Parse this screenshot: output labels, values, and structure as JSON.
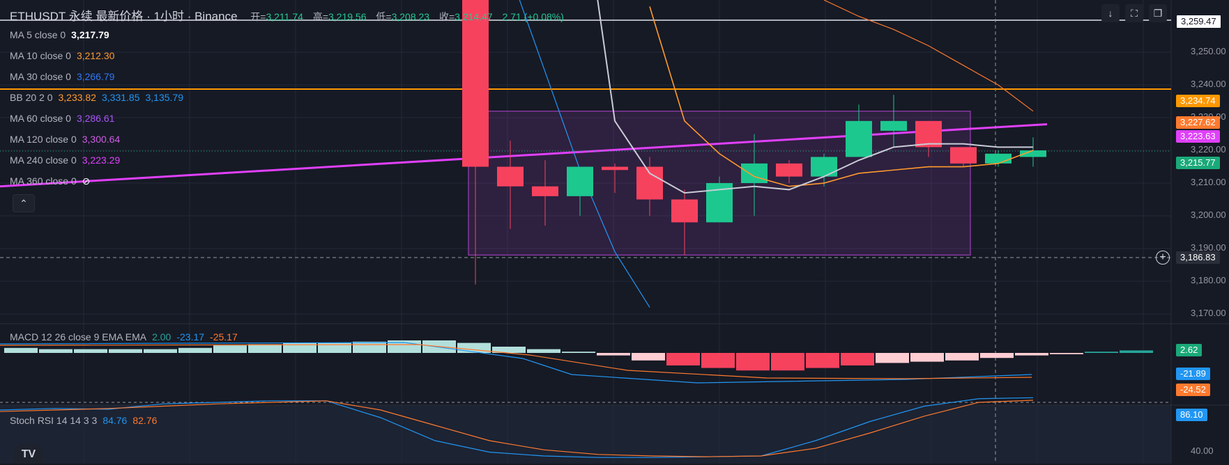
{
  "header": {
    "symbol_line": "ETHUSDT 永续 最新价格 · 1小时 · Binance",
    "open_key": "开=",
    "open": "3,211.74",
    "high_key": "高=",
    "high": "3,219.56",
    "low_key": "低=",
    "low": "3,208.23",
    "close_key": "收=",
    "close": "3,214.47",
    "change": "2.71 (+0.08%)"
  },
  "window_buttons": {
    "down": "↓",
    "fullscreen": "⛶",
    "restore": "❐"
  },
  "legend": [
    {
      "name": "MA 5 close 0",
      "value": "3,217.79",
      "color": "#ffffff"
    },
    {
      "name": "MA 10 close 0",
      "value": "3,212.30",
      "color": "#ff9a2e"
    },
    {
      "name": "MA 30 close 0",
      "value": "3,266.79",
      "color": "#3179f5"
    },
    {
      "name": "MA 60 close 0",
      "value": "3,286.61",
      "color": "#a855f7"
    },
    {
      "name": "MA 120 close 0",
      "value": "3,300.64",
      "color": "#d05ce3"
    },
    {
      "name": "MA 240 close 0",
      "value": "3,223.29",
      "color": "#e040fb"
    },
    {
      "name": "MA 360 close 0",
      "value": "⊘",
      "color": "#ffffff"
    }
  ],
  "bb_legend": {
    "name": "BB 20 2 0",
    "v1": "3,233.82",
    "v2": "3,331.85",
    "v3": "3,135.79",
    "c1": "#ff9a2e",
    "c2": "#2196f3",
    "c3": "#2196f3"
  },
  "collapse_icon": "⌃",
  "macd_legend": {
    "name": "MACD 12 26 close 9 EMA EMA",
    "hist": "2.00",
    "macd": "-23.17",
    "signal": "-25.17",
    "c_hist": "#26a69a",
    "c_macd": "#2196f3",
    "c_signal": "#ff7a2e"
  },
  "rsi_legend": {
    "name": "Stoch RSI 14 14 3 3",
    "k": "84.76",
    "d": "82.76",
    "c_k": "#2196f3",
    "c_d": "#ff7a2e"
  },
  "logo": "TV",
  "price_axis": {
    "ticks": [
      "3,250.00",
      "3,240.00",
      "3,230.00",
      "3,220.00",
      "3,210.00",
      "3,200.00",
      "3,190.00",
      "3,180.00",
      "3,170.00"
    ],
    "rsi_tick": "40.00"
  },
  "badges": {
    "top": "3,259.47",
    "bb_upper": "3,234.74",
    "ma10": "3,227.62",
    "ma240": "3,223.63",
    "last": "3,215.77",
    "crosshair": "3,186.83",
    "macd_hist": "2.62",
    "macd": "-21.89",
    "signal": "-24.52",
    "rsi": "86.10"
  },
  "colors": {
    "up": "#1dc88f",
    "down": "#f7425e",
    "bg": "#161a25",
    "grid": "#242836",
    "box": "#9c3fb8",
    "hline": "#ff9800"
  },
  "chart_data": {
    "type": "candlestick",
    "price_range": [
      3163,
      3262
    ],
    "candles": [
      {
        "o": 3309,
        "h": 3320,
        "l": 3175,
        "c": 3211
      },
      {
        "o": 3211,
        "h": 3219,
        "l": 3192,
        "c": 3205
      },
      {
        "o": 3205,
        "h": 3213,
        "l": 3193,
        "c": 3202
      },
      {
        "o": 3202,
        "h": 3211,
        "l": 3196,
        "c": 3211
      },
      {
        "o": 3211,
        "h": 3212,
        "l": 3203,
        "c": 3210
      },
      {
        "o": 3211,
        "h": 3214,
        "l": 3196,
        "c": 3201
      },
      {
        "o": 3201,
        "h": 3204,
        "l": 3184,
        "c": 3194
      },
      {
        "o": 3194,
        "h": 3208,
        "l": 3194,
        "c": 3206
      },
      {
        "o": 3206,
        "h": 3221,
        "l": 3196,
        "c": 3212
      },
      {
        "o": 3212,
        "h": 3213,
        "l": 3206,
        "c": 3208
      },
      {
        "o": 3208,
        "h": 3215,
        "l": 3205,
        "c": 3214
      },
      {
        "o": 3214,
        "h": 3230,
        "l": 3214,
        "c": 3225
      },
      {
        "o": 3222,
        "h": 3233,
        "l": 3217,
        "c": 3225
      },
      {
        "o": 3225,
        "h": 3225,
        "l": 3214,
        "c": 3217
      },
      {
        "o": 3217,
        "h": 3217,
        "l": 3211,
        "c": 3212
      },
      {
        "o": 3212,
        "h": 3216,
        "l": 3211,
        "c": 3215
      },
      {
        "o": 3214,
        "h": 3220,
        "l": 3211,
        "c": 3216
      }
    ],
    "ma5": [
      null,
      null,
      null,
      3300,
      3225,
      3209,
      3203,
      3204,
      3205,
      3204,
      3208,
      3213,
      3217,
      3218,
      3218,
      3217,
      3217
    ],
    "ma10": [
      null,
      null,
      null,
      null,
      null,
      3260,
      3225,
      3215,
      3208,
      3205,
      3206,
      3209,
      3210,
      3211,
      3211,
      3212,
      3216
    ],
    "ma30": [
      null,
      3270,
      3240,
      3210,
      3185,
      3168
    ],
    "ma30_tail": [
      3262,
      3259,
      3258
    ],
    "ma_upper": [
      3262,
      3257,
      3253,
      3248,
      3242,
      3236,
      3228
    ],
    "ma240_endpoints": [
      3205,
      3224
    ],
    "bb_upper_line": 3234.74,
    "box": {
      "from_index": 0,
      "to_index": 14,
      "top": 3228,
      "bottom": 3184
    },
    "macd_hist": [
      0.4,
      0.3,
      0.3,
      0.3,
      0.3,
      0.4,
      0.6,
      0.7,
      0.8,
      0.8,
      0.9,
      1.0,
      1.0,
      0.8,
      0.5,
      0.3,
      0.1,
      -0.2,
      -0.6,
      -1.0,
      -1.2,
      -1.4,
      -1.4,
      -1.2,
      -1.0,
      -0.8,
      -0.7,
      -0.6,
      -0.4,
      -0.2,
      -0.1,
      0.1,
      0.2,
      0.3,
      0.4,
      0.5,
      0.6
    ],
    "stoch_k": [
      70,
      72,
      71,
      78,
      80,
      82,
      82,
      60,
      30,
      15,
      10,
      8,
      8,
      9,
      10,
      30,
      55,
      75,
      84.76,
      86.1
    ],
    "stoch_d": [
      68,
      70,
      72,
      75,
      78,
      80,
      82,
      70,
      50,
      30,
      18,
      12,
      10,
      9,
      10,
      20,
      40,
      62,
      80,
      82.76
    ]
  }
}
